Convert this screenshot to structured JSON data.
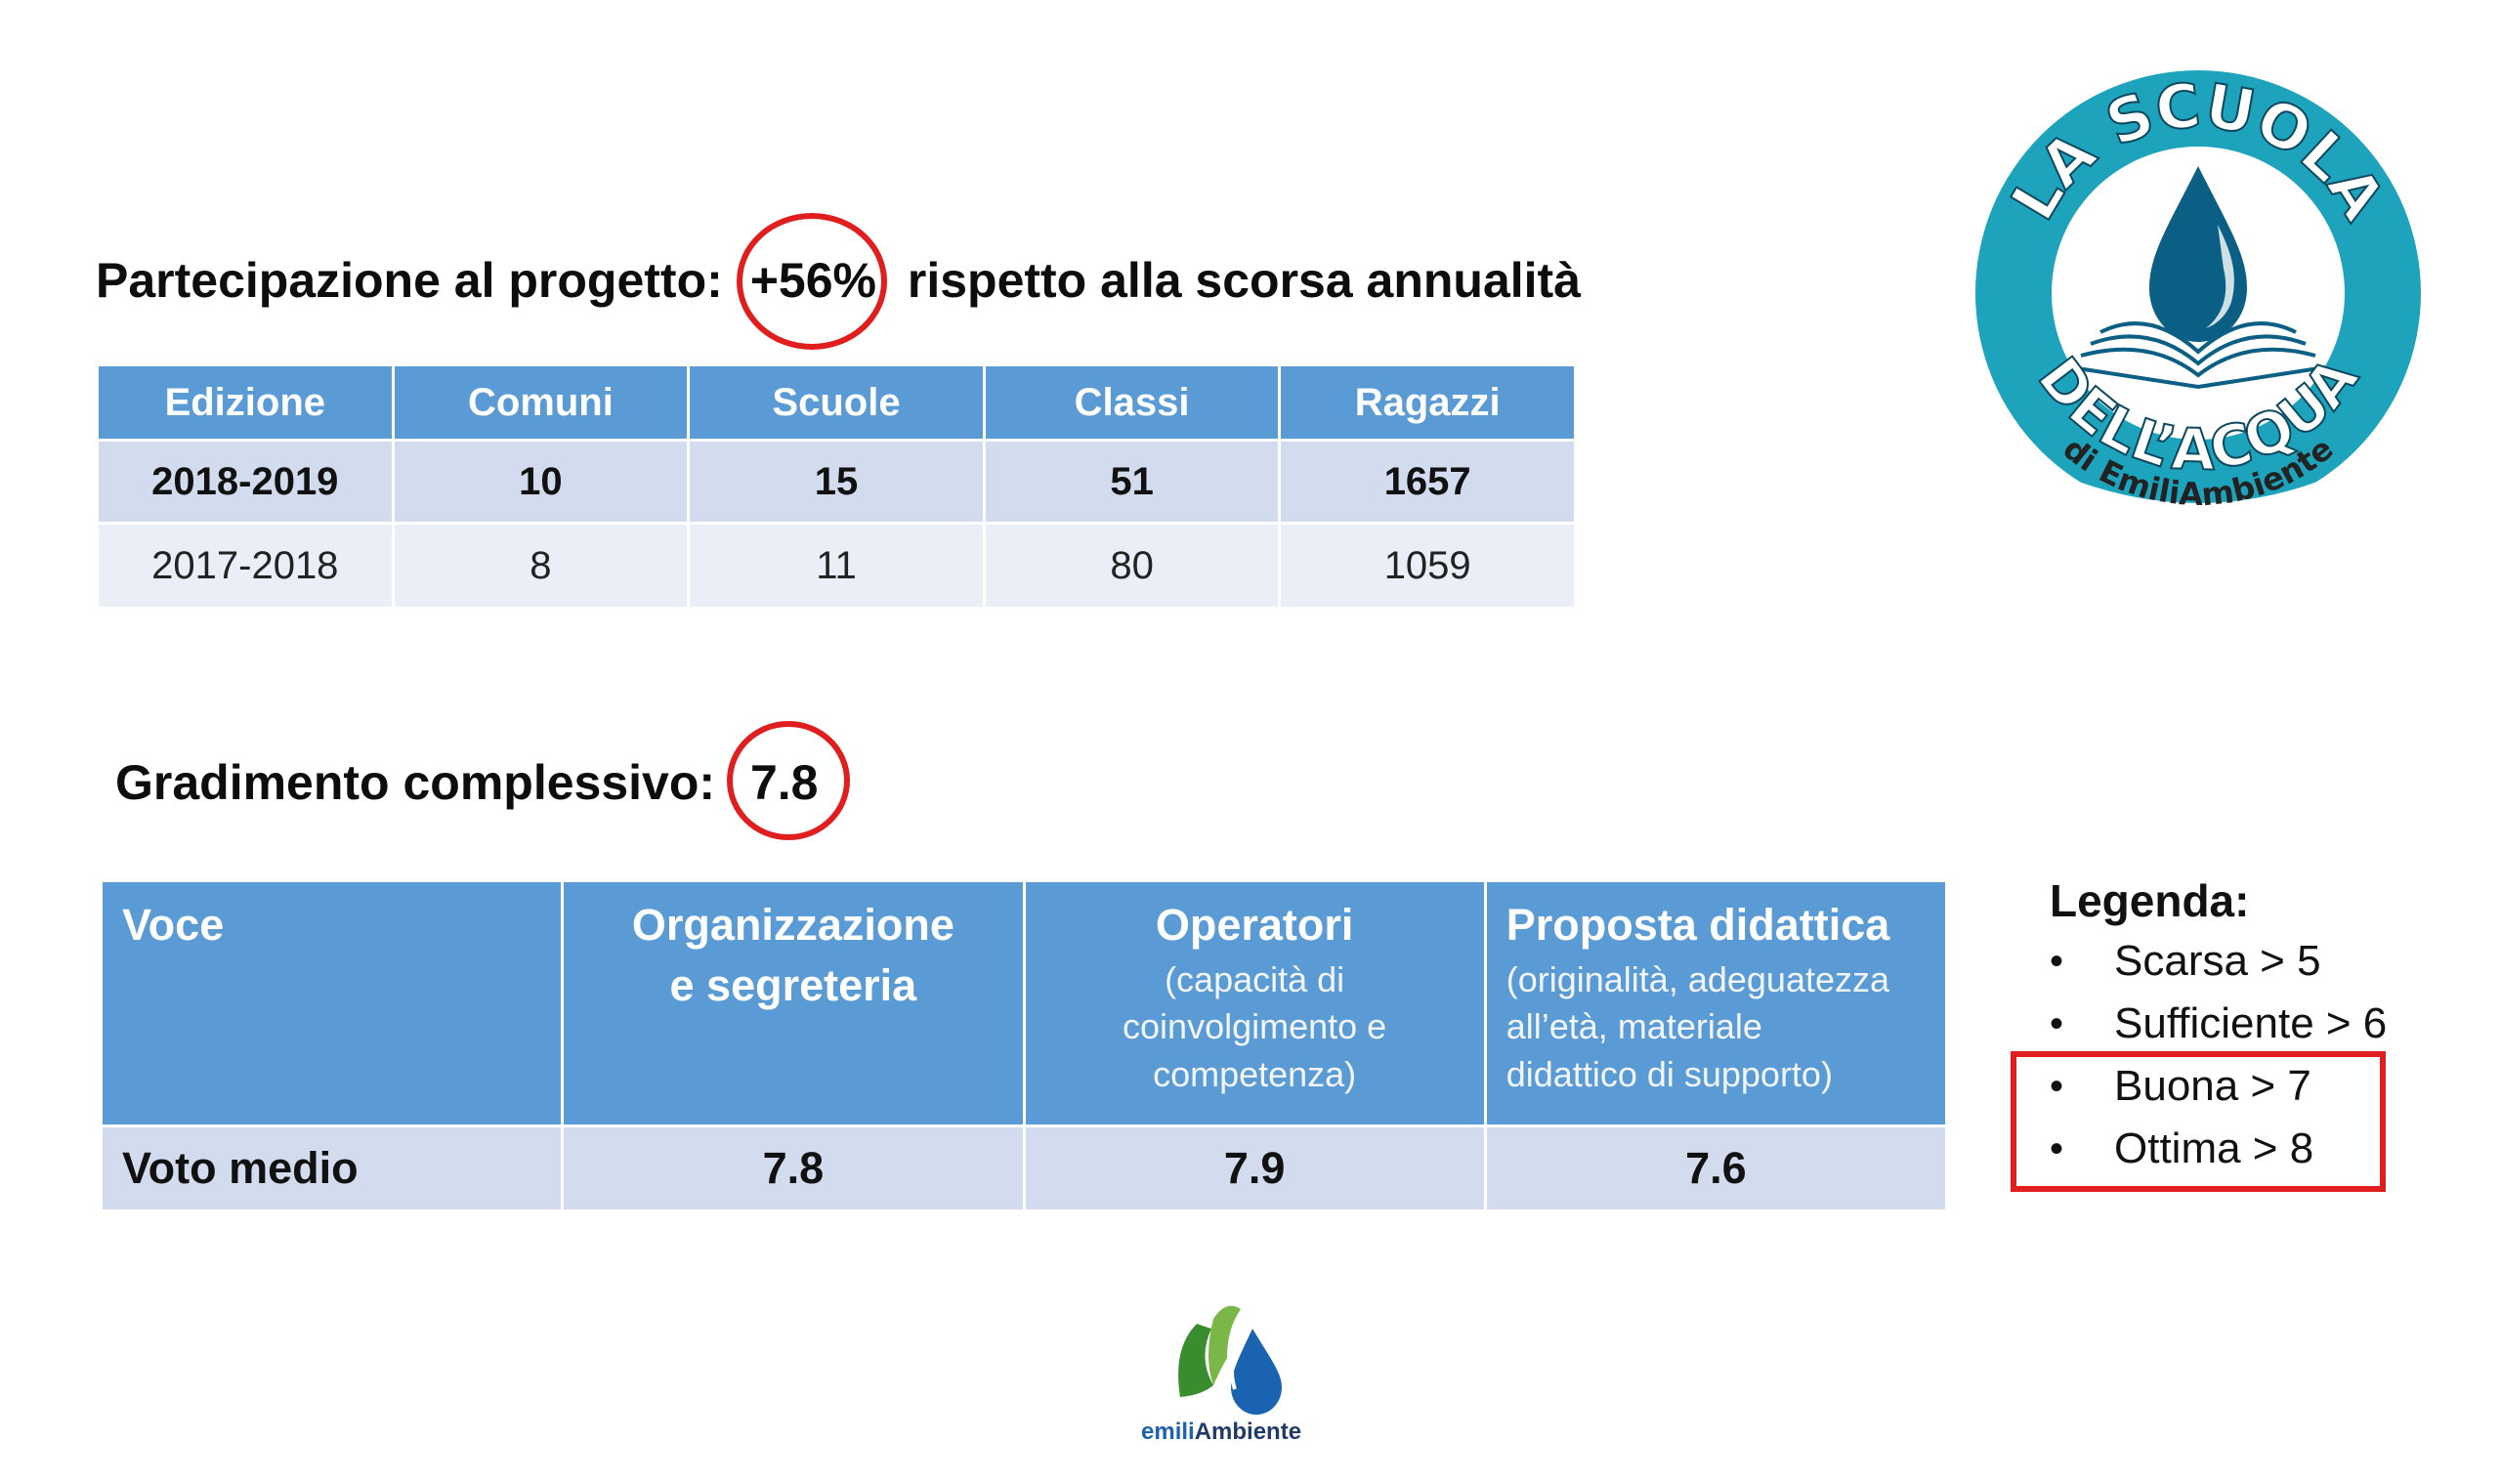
{
  "participation": {
    "prefix": "Partecipazione al progetto:",
    "highlight": "+56%",
    "suffix": "rispetto alla scorsa annualità"
  },
  "participation_table": {
    "headers": [
      "Edizione",
      "Comuni",
      "Scuole",
      "Classi",
      "Ragazzi"
    ],
    "rows": [
      [
        "2018-2019",
        "10",
        "15",
        "51",
        "1657"
      ],
      [
        "2017-2018",
        "8",
        "11",
        "80",
        "1059"
      ]
    ]
  },
  "satisfaction": {
    "prefix": "Gradimento complessivo:",
    "highlight": "7.8"
  },
  "satisfaction_table": {
    "col_voce": "Voce",
    "col_org": "Organizzazione e segreteria",
    "col_org_line1": "Organizzazione",
    "col_org_line2": "e segreteria",
    "col_op": "Operatori",
    "col_op_sub": "(capacità di coinvolgimento e competenza)",
    "col_op_sub1": "(capacità di",
    "col_op_sub2": "coinvolgimento e",
    "col_op_sub3": "competenza)",
    "col_prop": "Proposta didattica",
    "col_prop_sub": "(originalità, adeguatezza all’età, materiale didattico di supporto)",
    "col_prop_sub1": "(originalità, adeguatezza",
    "col_prop_sub2": "all’età, materiale",
    "col_prop_sub3": "didattico di supporto)",
    "row_label": "Voto medio",
    "row_values": [
      "7.8",
      "7.9",
      "7.6"
    ]
  },
  "legend": {
    "title": "Legenda:",
    "items": [
      "Scarsa > 5",
      "Sufficiente > 6",
      "Buona > 7",
      "Ottima > 8"
    ]
  },
  "logo_top": {
    "text_top": "LA SCUOLA",
    "text_bottom": "DELL’ACQUA",
    "text_small": "di EmiliAmbiente"
  },
  "logo_bottom": {
    "text_emili": "emili",
    "text_ambiente": "Ambiente"
  },
  "colors": {
    "header_blue": "#5b9bd5",
    "row_blue": "#d2dcee",
    "row_light": "#e9eef7",
    "highlight_red": "#e11e1e",
    "logo_teal": "#1ea3bd"
  }
}
